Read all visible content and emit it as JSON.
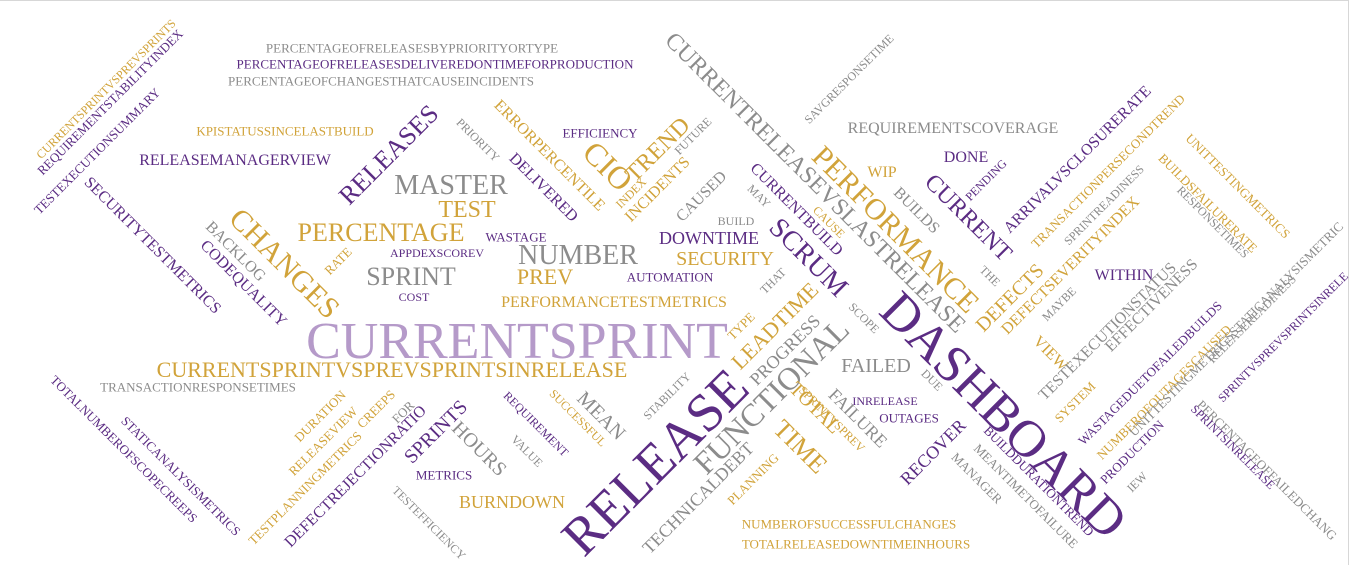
{
  "palette": {
    "purple": "#5b2c83",
    "gold": "#d1a33a",
    "gray": "#8c8c8c",
    "lavender": "#b59ac9"
  },
  "words": [
    "CURRENTSPRINT",
    "DASHBOARD",
    "RELEASE",
    "CURRENTSPRINTVSPREVSPRINTSINRELEASE",
    "FUNCTIONAL",
    "MASTER",
    "TEST",
    "PERCENTAGE",
    "NUMBER",
    "SPRINT",
    "CHANGES",
    "PERFORMANCE",
    "RELEASES",
    "CIO",
    "TREND",
    "CURRENTRELEASEVSLASTRELEASE",
    "SCRUM",
    "CURRENT",
    "DEFECTS",
    "TIME",
    "LEADTIME",
    "PREV",
    "SECURITY",
    "DOWNTIME",
    "FAILED",
    "PROGRESS",
    "TOTAL",
    "FAILURE",
    "RECOVER",
    "BURNDOWN",
    "SPRINTS",
    "HOURS",
    "MEAN",
    "TECHNICALDEBT",
    "PERFORMANCETESTMETRICS",
    "RELEASEMANAGERVIEW",
    "REQUIREMENTSCOVERAGE",
    "DONE",
    "WITHIN",
    "VIEW",
    "ARRIVALVSCLOSURERATE",
    "DEFECTSEVERITYINDEX",
    "TESTEXECUTIONSTATUS",
    "EFFECTIVENESS",
    "SECURITYTESTMETRICS",
    "CODEQUALITY",
    "BACKLOG",
    "ERRORPERCENTILE",
    "INCIDENTS",
    "DELIVERED",
    "CURRENTBUILD",
    "BUILDS",
    "WIP",
    "CAUSED",
    "WASTAGE",
    "APPDEXSCOREV",
    "AUTOMATION",
    "COST",
    "RATE",
    "PERCENTAGEOFRELEASESBYPRIORITYORTYPE",
    "PERCENTAGEOFRELEASESDELIVEREDONTIMEFORPRODUCTION",
    "PERCENTAGEOFCHANGESTHATCAUSEINCIDENTS",
    "KPISTATUSSINCELASTBUILD",
    "EFFICIENCY",
    "PRIORITY",
    "FUTURE",
    "INDEX",
    "BUILD",
    "MAY",
    "CAUSE",
    "THAT",
    "SCOPE",
    "TYPE",
    "STABILITY",
    "SUCCESSFUL",
    "REQUIREMENT",
    "VALUE",
    "METRICS",
    "DURATION",
    "CREEPS",
    "RELEASEVIEW",
    "FOR",
    "DEFECTREJECTIONRATIO",
    "TESTPLANNINGMETRICS",
    "STATICANALYSISMETRICS",
    "TOTALNUMBEROFSCOPECREEPS",
    "TRANSACTIONRESPONSETIMES",
    "TESTEFFICIENCY",
    "PLANNING",
    "SPRINTVSPREV",
    "NUMBEROFSUCCESSFULCHANGES",
    "TOTALRELEASEDOWNTIMEINHOURS",
    "MEANTIMETOFAILURE",
    "MANAGER",
    "BUILDDURATIONTREND",
    "OUTAGES",
    "INRELEASE",
    "DUE",
    "SYSTEM",
    "WASTAGEDUETOFAILEDBUILDS",
    "NUMBEROFOUTAGESCAUSED",
    "UNITTESTINGMETRICSSTATICANALYSISMETRIC",
    "PRODUCTION",
    "IEW",
    "MAYBE",
    "THE",
    "PENDING",
    "SPRINTREADINESS",
    "TRANSACTIONPERSECONDTREND",
    "RESPONSETIMES",
    "BUILDSFAILURERATE",
    "UNITTESTINGMETRICS",
    "RELEASEREADINESS",
    "SPRINTVSPREVSPRINTSINRELE",
    "PERCENTAGEOFFAILEDCHANG",
    "SPRINTSINRELEASE",
    "SAVGRESPONSETIME",
    "CURRENTSPRINTVSPREVSPRINTS",
    "REQUIREMENTSTABILITYINDEX",
    "TESTEXECUTIONSUMMARY"
  ]
}
